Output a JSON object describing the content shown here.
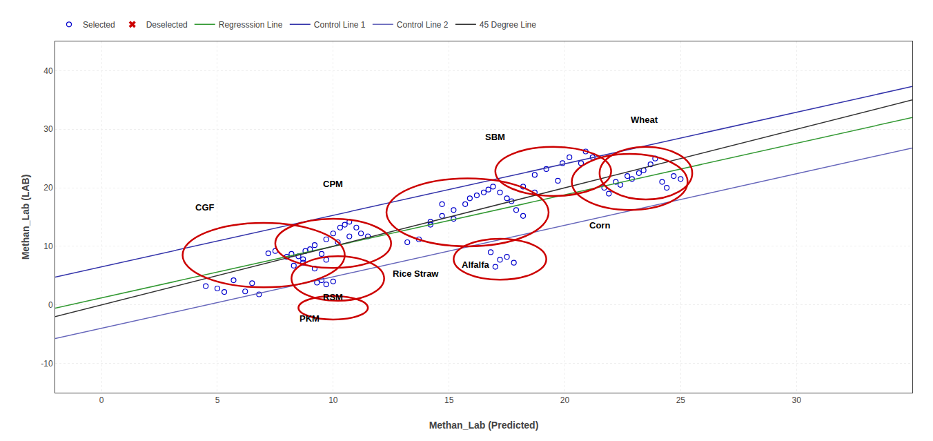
{
  "chart_data": {
    "type": "scatter",
    "xlabel": "Methan_Lab (Predicted)",
    "ylabel": "Methan_Lab (LAB)",
    "xlim": [
      -2,
      35
    ],
    "ylim": [
      -15,
      45
    ],
    "xticks": [
      0,
      5,
      10,
      15,
      20,
      25,
      30
    ],
    "yticks": [
      -10,
      0,
      10,
      20,
      30,
      40
    ],
    "grid": true,
    "legend": "upper left",
    "series": [
      {
        "name": "Selected",
        "type": "scatter",
        "marker": "circle-open",
        "color": "#0000cc",
        "x": [
          4.5,
          5.0,
          5.3,
          5.7,
          6.2,
          6.5,
          6.8,
          7.2,
          7.5,
          8.0,
          8.2,
          8.5,
          8.7,
          8.8,
          9.0,
          9.2,
          9.5,
          9.7,
          10.0,
          10.3,
          10.5,
          10.7,
          11.0,
          11.2,
          11.5,
          8.3,
          8.7,
          9.2,
          9.7,
          10.2,
          10.7,
          9.3,
          9.5,
          9.7,
          10.0,
          13.2,
          13.7,
          14.2,
          14.7,
          15.2,
          15.7,
          15.9,
          16.2,
          16.5,
          16.7,
          16.9,
          17.2,
          17.5,
          17.7,
          17.9,
          18.2,
          14.2,
          14.7,
          15.2,
          18.7,
          19.2,
          19.7,
          19.9,
          20.2,
          20.7,
          20.9,
          21.2,
          18.2,
          18.7,
          17.2,
          17.5,
          17.0,
          16.8,
          17.8,
          21.7,
          21.9,
          22.2,
          22.4,
          22.7,
          22.9,
          23.2,
          23.4,
          23.7,
          23.9,
          24.2,
          24.4,
          24.7,
          25.0
        ],
        "values": [
          3.2,
          2.8,
          2.2,
          4.2,
          2.3,
          3.7,
          1.8,
          8.8,
          9.2,
          8.2,
          8.7,
          8.3,
          7.8,
          9.2,
          9.5,
          10.2,
          8.7,
          11.2,
          12.2,
          13.2,
          13.7,
          14.2,
          13.2,
          12.2,
          11.7,
          6.7,
          7.2,
          6.2,
          7.7,
          10.7,
          11.7,
          3.8,
          4.2,
          3.5,
          4.0,
          10.7,
          11.2,
          14.2,
          17.2,
          16.2,
          17.2,
          18.2,
          18.7,
          19.2,
          19.7,
          20.2,
          19.2,
          18.2,
          17.7,
          16.2,
          15.2,
          13.7,
          15.2,
          14.7,
          22.2,
          23.2,
          21.2,
          24.2,
          25.2,
          24.2,
          26.2,
          25.2,
          20.2,
          19.2,
          7.7,
          8.2,
          6.5,
          9.0,
          7.2,
          20.0,
          19.0,
          21.0,
          20.5,
          22.0,
          21.5,
          22.5,
          23.0,
          24.0,
          25.0,
          21.0,
          20.0,
          22.0,
          21.5
        ]
      },
      {
        "name": "Deselected",
        "type": "scatter",
        "marker": "x",
        "color": "#cc0000",
        "x": [],
        "values": []
      },
      {
        "name": "Regresssion Line",
        "type": "line",
        "line_style": "solid",
        "color": "#339933",
        "x": [
          -2,
          35
        ],
        "values": [
          -0.56,
          32.0
        ]
      },
      {
        "name": "Control Line 1",
        "type": "line",
        "line_style": "solid",
        "color": "#3333aa",
        "x": [
          -2,
          35
        ],
        "values": [
          4.74,
          37.3
        ]
      },
      {
        "name": "Control Line 2",
        "type": "line",
        "line_style": "solid",
        "color": "#6666bb",
        "x": [
          -2,
          35
        ],
        "values": [
          -5.76,
          26.8
        ]
      },
      {
        "name": "45 Degree Line",
        "type": "line",
        "line_style": "solid",
        "color": "#333333",
        "x": [
          -2,
          35
        ],
        "values": [
          -2,
          35
        ]
      }
    ],
    "ellipse_color": "#cc0000",
    "ellipses": [
      {
        "cx": 7.0,
        "cy": 8.5,
        "rx": 3.5,
        "ry": 5.5,
        "label": "CGF",
        "label_x": 4.0,
        "label_y": 15.5
      },
      {
        "cx": 10.0,
        "cy": 10.5,
        "rx": 2.5,
        "ry": 4.2,
        "label": "CPM",
        "label_x": 9.5,
        "label_y": 19.5
      },
      {
        "cx": 10.2,
        "cy": 4.5,
        "rx": 2.0,
        "ry": 3.8,
        "label": "RSM",
        "label_x": 9.5,
        "label_y": 0.2
      },
      {
        "cx": 10.0,
        "cy": -0.5,
        "rx": 1.5,
        "ry": 2.0,
        "label": "PKM",
        "label_x": 8.5,
        "label_y": -3.5
      },
      {
        "cx": 15.8,
        "cy": 15.8,
        "rx": 3.5,
        "ry": 5.8,
        "label": "Rice Straw",
        "label_x": 12.5,
        "label_y": 4.2
      },
      {
        "cx": 19.5,
        "cy": 22.8,
        "rx": 2.5,
        "ry": 4.2,
        "label": "SBM",
        "label_x": 16.5,
        "label_y": 27.5
      },
      {
        "cx": 17.2,
        "cy": 7.8,
        "rx": 2.0,
        "ry": 3.5,
        "label": "Alfalfa",
        "label_x": 15.5,
        "label_y": 5.8
      },
      {
        "cx": 22.8,
        "cy": 21.0,
        "rx": 2.5,
        "ry": 4.8,
        "label": "Corn",
        "label_x": 21.0,
        "label_y": 12.5
      },
      {
        "cx": 23.5,
        "cy": 22.5,
        "rx": 2.0,
        "ry": 4.5,
        "label": "Wheat",
        "label_x": 22.8,
        "label_y": 30.5
      }
    ]
  }
}
